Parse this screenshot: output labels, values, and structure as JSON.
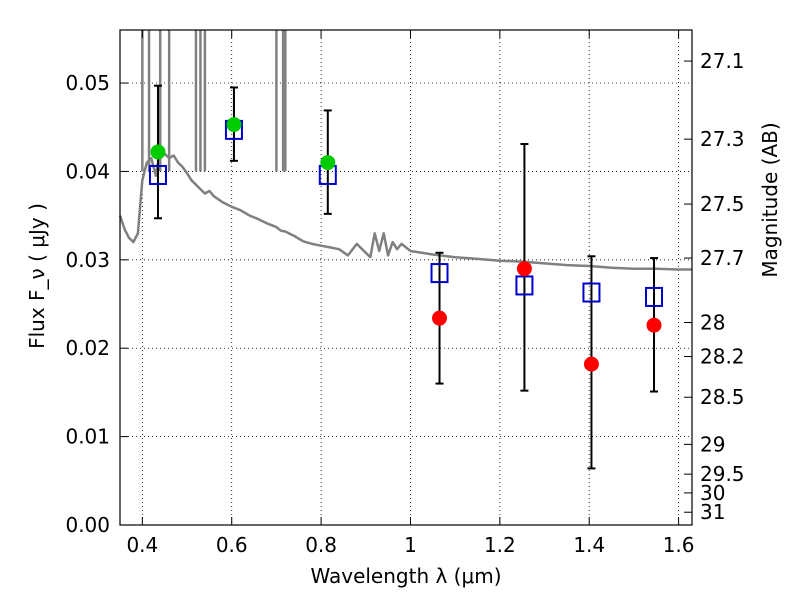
{
  "chart_data": {
    "type": "scatter",
    "xlabel": "Wavelength  λ (μm)",
    "ylabel": "Flux  F_ν  ( μJy )",
    "y2label": "Magnitude (AB)",
    "xlim": [
      0.35,
      1.63
    ],
    "ylim": [
      0.0,
      0.056
    ],
    "grid": true,
    "x_ticks": [
      {
        "value": 0.4,
        "label": "0.4"
      },
      {
        "value": 0.6,
        "label": "0.6"
      },
      {
        "value": 0.8,
        "label": "0.8"
      },
      {
        "value": 1.0,
        "label": "1"
      },
      {
        "value": 1.2,
        "label": "1.2"
      },
      {
        "value": 1.4,
        "label": "1.4"
      },
      {
        "value": 1.6,
        "label": "1.6"
      }
    ],
    "y_ticks": [
      {
        "value": 0.0,
        "label": "0.00"
      },
      {
        "value": 0.01,
        "label": "0.01"
      },
      {
        "value": 0.02,
        "label": "0.02"
      },
      {
        "value": 0.03,
        "label": "0.03"
      },
      {
        "value": 0.04,
        "label": "0.04"
      },
      {
        "value": 0.05,
        "label": "0.05"
      }
    ],
    "y2_ticks": [
      {
        "value": 27.1,
        "label": "27.1"
      },
      {
        "value": 27.3,
        "label": "27.3"
      },
      {
        "value": 27.5,
        "label": "27.5"
      },
      {
        "value": 27.7,
        "label": "27.7"
      },
      {
        "value": 28.0,
        "label": "28"
      },
      {
        "value": 28.2,
        "label": "28.2"
      },
      {
        "value": 28.5,
        "label": "28.5"
      },
      {
        "value": 29.0,
        "label": "29"
      },
      {
        "value": 29.5,
        "label": "29.5"
      },
      {
        "value": 30.0,
        "label": "30"
      },
      {
        "value": 31.0,
        "label": "31"
      }
    ],
    "series": [
      {
        "kind": "model-spectrum",
        "color": "#808080",
        "x": [
          0.35,
          0.36,
          0.37,
          0.38,
          0.39,
          0.4,
          0.41,
          0.42,
          0.43,
          0.44,
          0.45,
          0.46,
          0.47,
          0.48,
          0.49,
          0.5,
          0.51,
          0.52,
          0.53,
          0.54,
          0.55,
          0.56,
          0.58,
          0.6,
          0.62,
          0.64,
          0.66,
          0.68,
          0.7,
          0.71,
          0.72,
          0.74,
          0.76,
          0.78,
          0.8,
          0.82,
          0.84,
          0.86,
          0.88,
          0.9,
          0.91,
          0.92,
          0.93,
          0.94,
          0.95,
          0.96,
          0.97,
          0.98,
          1.0,
          1.05,
          1.1,
          1.15,
          1.2,
          1.25,
          1.3,
          1.35,
          1.4,
          1.45,
          1.5,
          1.55,
          1.6,
          1.63
        ],
        "y": [
          0.035,
          0.0335,
          0.0325,
          0.032,
          0.033,
          0.039,
          0.041,
          0.0415,
          0.0395,
          0.0425,
          0.042,
          0.0415,
          0.0418,
          0.041,
          0.0405,
          0.0398,
          0.039,
          0.0385,
          0.038,
          0.0375,
          0.0378,
          0.0372,
          0.0365,
          0.036,
          0.0356,
          0.035,
          0.0346,
          0.0341,
          0.0337,
          0.0333,
          0.0332,
          0.0327,
          0.0321,
          0.0318,
          0.0316,
          0.0314,
          0.0312,
          0.0305,
          0.0318,
          0.0308,
          0.0303,
          0.033,
          0.031,
          0.033,
          0.0305,
          0.032,
          0.0312,
          0.0318,
          0.031,
          0.0306,
          0.0303,
          0.0301,
          0.0299,
          0.0298,
          0.0296,
          0.0294,
          0.0293,
          0.0291,
          0.029,
          0.029,
          0.0289,
          0.0289
        ]
      },
      {
        "kind": "model-photometry",
        "marker": "open-square",
        "color": "#0000cc",
        "x": [
          0.435,
          0.605,
          0.815,
          1.065,
          1.255,
          1.405,
          1.545
        ],
        "y": [
          0.0396,
          0.0447,
          0.0396,
          0.0285,
          0.0271,
          0.0263,
          0.0258
        ]
      },
      {
        "kind": "observed-photometry",
        "marker": "filled-circle",
        "x": [
          0.435,
          0.605,
          0.815,
          1.065,
          1.255,
          1.405,
          1.545
        ],
        "y": [
          0.0422,
          0.0453,
          0.041,
          0.0234,
          0.029,
          0.0182,
          0.0226
        ],
        "yerr_low": [
          0.0347,
          0.0412,
          0.0352,
          0.016,
          0.0152,
          0.0064,
          0.0151
        ],
        "yerr_high": [
          0.0497,
          0.0495,
          0.0469,
          0.0308,
          0.0431,
          0.0304,
          0.0302
        ],
        "colors": [
          "#00cc00",
          "#00cc00",
          "#00cc00",
          "#ff0000",
          "#ff0000",
          "#ff0000",
          "#ff0000"
        ]
      }
    ]
  }
}
